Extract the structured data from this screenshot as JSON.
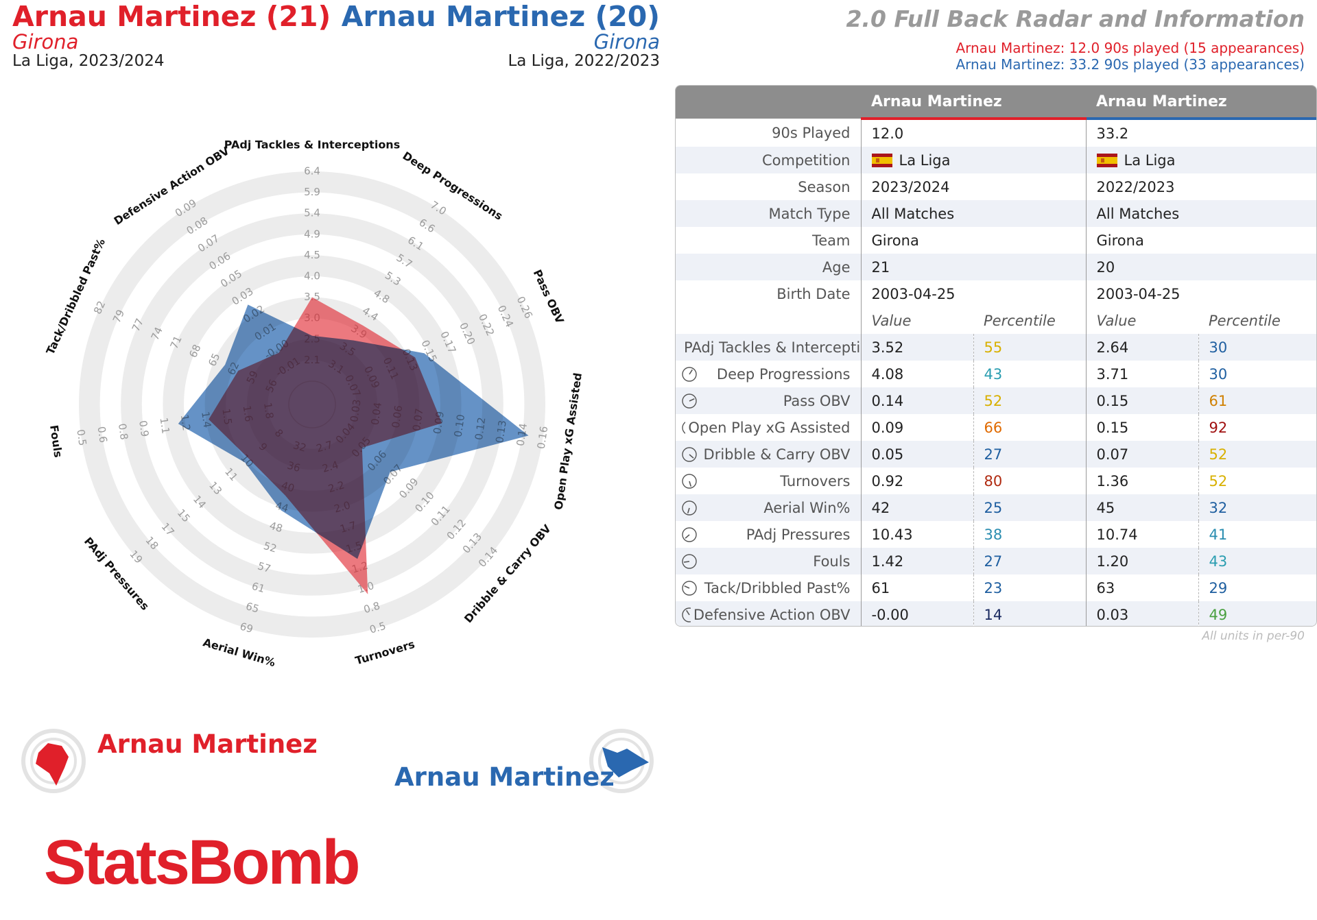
{
  "header": {
    "player1": {
      "title": "Arnau Martinez (21)",
      "team": "Girona",
      "competition": "La Liga, 2023/2024"
    },
    "player2": {
      "title": "Arnau Martinez (20)",
      "team": "Girona",
      "competition": "La Liga, 2022/2023"
    },
    "report_title": "2.0 Full Back Radar and Information",
    "played1": "Arnau Martinez: 12.0 90s played (15 appearances)",
    "played2": "Arnau Martinez: 33.2 90s played (33 appearances)"
  },
  "colors": {
    "player1": "#e0202a",
    "player2": "#2a68b0",
    "header_bg": "#8d8d8d",
    "alt_row": "#eef1f7"
  },
  "table": {
    "col1_name": "Arnau Martinez",
    "col2_name": "Arnau Martinez",
    "info_rows": [
      {
        "label": "90s Played",
        "v1": "12.0",
        "v2": "33.2"
      },
      {
        "label": "Competition",
        "v1": "La Liga",
        "v2": "La Liga",
        "flag": true
      },
      {
        "label": "Season",
        "v1": "2023/2024",
        "v2": "2022/2023"
      },
      {
        "label": "Match Type",
        "v1": "All Matches",
        "v2": "All Matches"
      },
      {
        "label": "Team",
        "v1": "Girona",
        "v2": "Girona"
      },
      {
        "label": "Age",
        "v1": "21",
        "v2": "20"
      },
      {
        "label": "Birth Date",
        "v1": "2003-04-25",
        "v2": "2003-04-25"
      }
    ],
    "sub_headers": {
      "value": "Value",
      "percentile": "Percentile"
    },
    "metric_rows": [
      {
        "label": "PAdj Tackles & Interceptions",
        "v1": "3.52",
        "p1": "55",
        "p1c": "#d8b000",
        "v2": "2.64",
        "p2": "30",
        "p2c": "#1f5fa0"
      },
      {
        "label": "Deep Progressions",
        "v1": "4.08",
        "p1": "43",
        "p1c": "#2a9db0",
        "v2": "3.71",
        "p2": "30",
        "p2c": "#1f5fa0"
      },
      {
        "label": "Pass OBV",
        "v1": "0.14",
        "p1": "52",
        "p1c": "#d8b000",
        "v2": "0.15",
        "p2": "61",
        "p2c": "#d08000"
      },
      {
        "label": "Open Play xG Assisted",
        "v1": "0.09",
        "p1": "66",
        "p1c": "#e06a00",
        "v2": "0.15",
        "p2": "92",
        "p2c": "#a01010"
      },
      {
        "label": "Dribble & Carry OBV",
        "v1": "0.05",
        "p1": "27",
        "p1c": "#1f5fa0",
        "v2": "0.07",
        "p2": "52",
        "p2c": "#d8b000"
      },
      {
        "label": "Turnovers",
        "v1": "0.92",
        "p1": "80",
        "p1c": "#b02a10",
        "v2": "1.36",
        "p2": "52",
        "p2c": "#d8b000"
      },
      {
        "label": "Aerial Win%",
        "v1": "42",
        "p1": "25",
        "p1c": "#1f5fa0",
        "v2": "45",
        "p2": "32",
        "p2c": "#1f5fa0"
      },
      {
        "label": "PAdj Pressures",
        "v1": "10.43",
        "p1": "38",
        "p1c": "#2a8db0",
        "v2": "10.74",
        "p2": "41",
        "p2c": "#2a8db0"
      },
      {
        "label": "Fouls",
        "v1": "1.42",
        "p1": "27",
        "p1c": "#1f5fa0",
        "v2": "1.20",
        "p2": "43",
        "p2c": "#2a9db0"
      },
      {
        "label": "Tack/Dribbled Past%",
        "v1": "61",
        "p1": "23",
        "p1c": "#1f5fa0",
        "v2": "63",
        "p2": "29",
        "p2c": "#1f5fa0"
      },
      {
        "label": "Defensive Action OBV",
        "v1": "-0.00",
        "p1": "14",
        "p1c": "#1a2a60",
        "v2": "0.03",
        "p2": "49",
        "p2c": "#4aa040"
      }
    ],
    "units_note": "All units in per-90"
  },
  "legend": {
    "player1": "Arnau Martinez",
    "player2": "Arnau Martinez"
  },
  "brand": "StatsBomb",
  "chart_data": {
    "type": "radar",
    "axes": [
      {
        "label": "PAdj Tackles & Interceptions",
        "ticks": [
          "2.1",
          "2.5",
          "3.0",
          "3.5",
          "4.0",
          "4.5",
          "4.9",
          "5.4",
          "5.9",
          "6.4"
        ],
        "min": 1.6,
        "max": 6.4
      },
      {
        "label": "Deep Progressions",
        "ticks": [
          "3.1",
          "3.5",
          "3.9",
          "4.4",
          "4.8",
          "5.3",
          "5.7",
          "6.1",
          "6.6",
          "7.0"
        ],
        "min": 2.6,
        "max": 7.0
      },
      {
        "label": "Pass OBV",
        "ticks": [
          "0.07",
          "0.09",
          "0.11",
          "0.13",
          "0.15",
          "0.17",
          "0.20",
          "0.22",
          "0.24",
          "0.26"
        ],
        "min": 0.05,
        "max": 0.26
      },
      {
        "label": "Open Play xG Assisted",
        "ticks": [
          "0.03",
          "0.04",
          "0.06",
          "0.07",
          "0.09",
          "0.10",
          "0.12",
          "0.13",
          "0.14",
          "0.16"
        ],
        "min": 0.016,
        "max": 0.16
      },
      {
        "label": "Dribble & Carry OBV",
        "ticks": [
          "0.04",
          "0.05",
          "0.06",
          "0.07",
          "0.09",
          "0.10",
          "0.11",
          "0.12",
          "0.13",
          "0.14"
        ],
        "min": 0.027,
        "max": 0.14
      },
      {
        "label": "Turnovers",
        "ticks": [
          "2.7",
          "2.4",
          "2.2",
          "2.0",
          "1.7",
          "1.5",
          "1.2",
          "1.0",
          "0.8",
          "0.5"
        ],
        "min": 3.0,
        "max": 0.5
      },
      {
        "label": "Aerial Win%",
        "ticks": [
          "32",
          "36",
          "40",
          "44",
          "48",
          "52",
          "57",
          "61",
          "65",
          "69"
        ],
        "min": 28,
        "max": 69
      },
      {
        "label": "PAdj Pressures",
        "ticks": [
          "8",
          "9",
          "10",
          "11",
          "13",
          "14",
          "15",
          "17",
          "18",
          "19"
        ],
        "min": 7,
        "max": 19
      },
      {
        "label": "Fouls",
        "ticks": [
          "1.8",
          "1.6",
          "1.5",
          "1.4",
          "1.2",
          "1.1",
          "0.9",
          "0.8",
          "0.6",
          "0.5"
        ],
        "min": 2.0,
        "max": 0.5
      },
      {
        "label": "Tack/Dribbled Past%",
        "ticks": [
          "56",
          "59",
          "62",
          "65",
          "68",
          "71",
          "74",
          "77",
          "79",
          "82"
        ],
        "min": 53,
        "max": 82
      },
      {
        "label": "Defensive Action OBV",
        "ticks": [
          "-0.01",
          "-0.00",
          "0.01",
          "0.02",
          "0.03",
          "0.05",
          "0.06",
          "0.07",
          "0.08",
          "0.09"
        ],
        "min": -0.02,
        "max": 0.09
      }
    ],
    "series": [
      {
        "name": "Arnau Martinez",
        "color": "#e0202a",
        "values": [
          3.52,
          4.08,
          0.14,
          0.09,
          0.05,
          0.92,
          42,
          10.43,
          1.42,
          61,
          -0.0
        ]
      },
      {
        "name": "Arnau Martinez",
        "color": "#2a68b0",
        "values": [
          2.64,
          3.71,
          0.15,
          0.15,
          0.07,
          1.36,
          45,
          10.74,
          1.2,
          63,
          0.03
        ]
      }
    ]
  }
}
